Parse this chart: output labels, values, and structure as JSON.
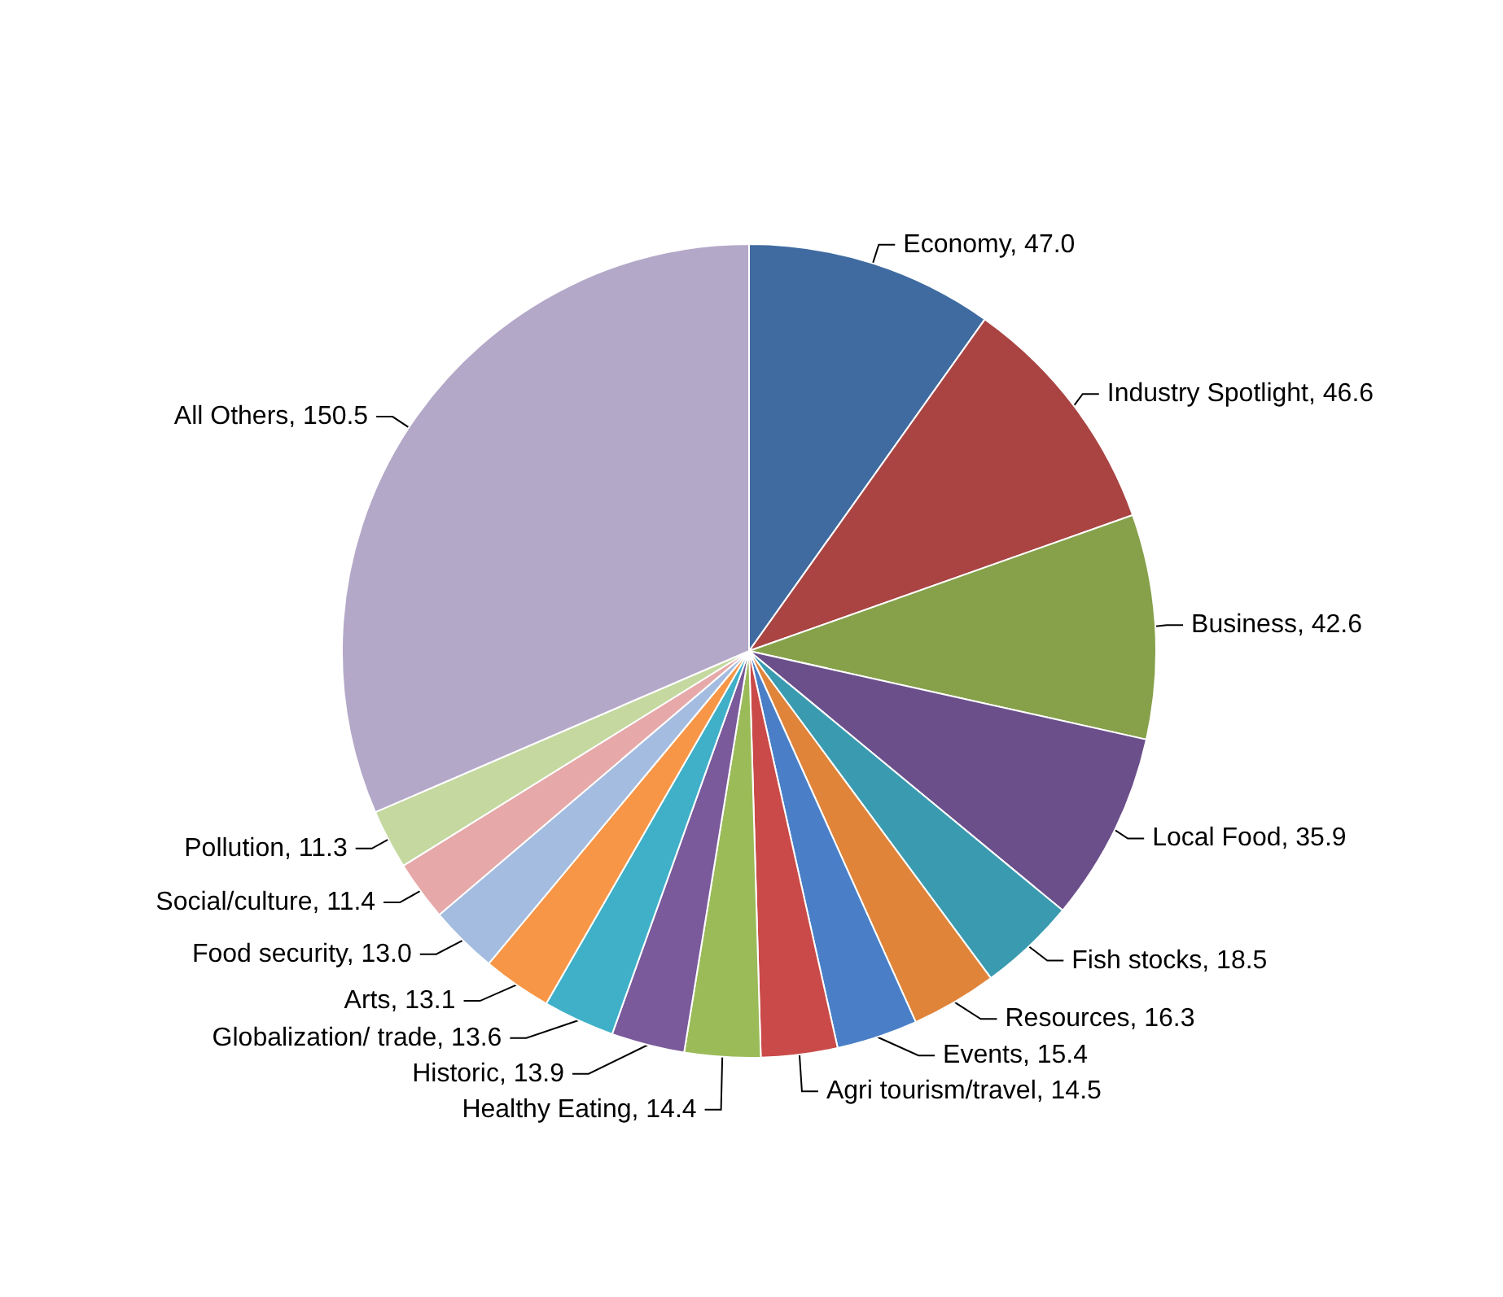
{
  "chart_data": {
    "type": "pie",
    "categories": [
      "Economy",
      "Industry Spotlight",
      "Business",
      "Local Food",
      "Fish stocks",
      "Resources",
      "Events",
      "Agri tourism/travel",
      "Healthy Eating",
      "Historic",
      "Globalization/ trade",
      "Arts",
      "Food security",
      "Social/culture",
      "Pollution",
      "All Others"
    ],
    "values": [
      47.0,
      46.6,
      42.6,
      35.9,
      18.5,
      16.3,
      15.4,
      14.5,
      14.4,
      13.9,
      13.6,
      13.1,
      13.0,
      11.4,
      11.3,
      150.5
    ],
    "value_labels": [
      "47.0",
      "46.6",
      "42.6",
      "35.9",
      "18.5",
      "16.3",
      "15.4",
      "14.5",
      "14.4",
      "13.9",
      "13.6",
      "13.1",
      "13.0",
      "11.4",
      "11.3",
      "150.5"
    ],
    "colors": [
      "#3f6ba0",
      "#a94442",
      "#86a14a",
      "#6b4f8a",
      "#3a9bb0",
      "#e0843a",
      "#4a7fc8",
      "#c94a48",
      "#9bbb59",
      "#7a5a9a",
      "#3fb0c8",
      "#f79646",
      "#a4bce0",
      "#e6a8a8",
      "#c4d8a0",
      "#b4a8c8"
    ],
    "legend": false
  }
}
